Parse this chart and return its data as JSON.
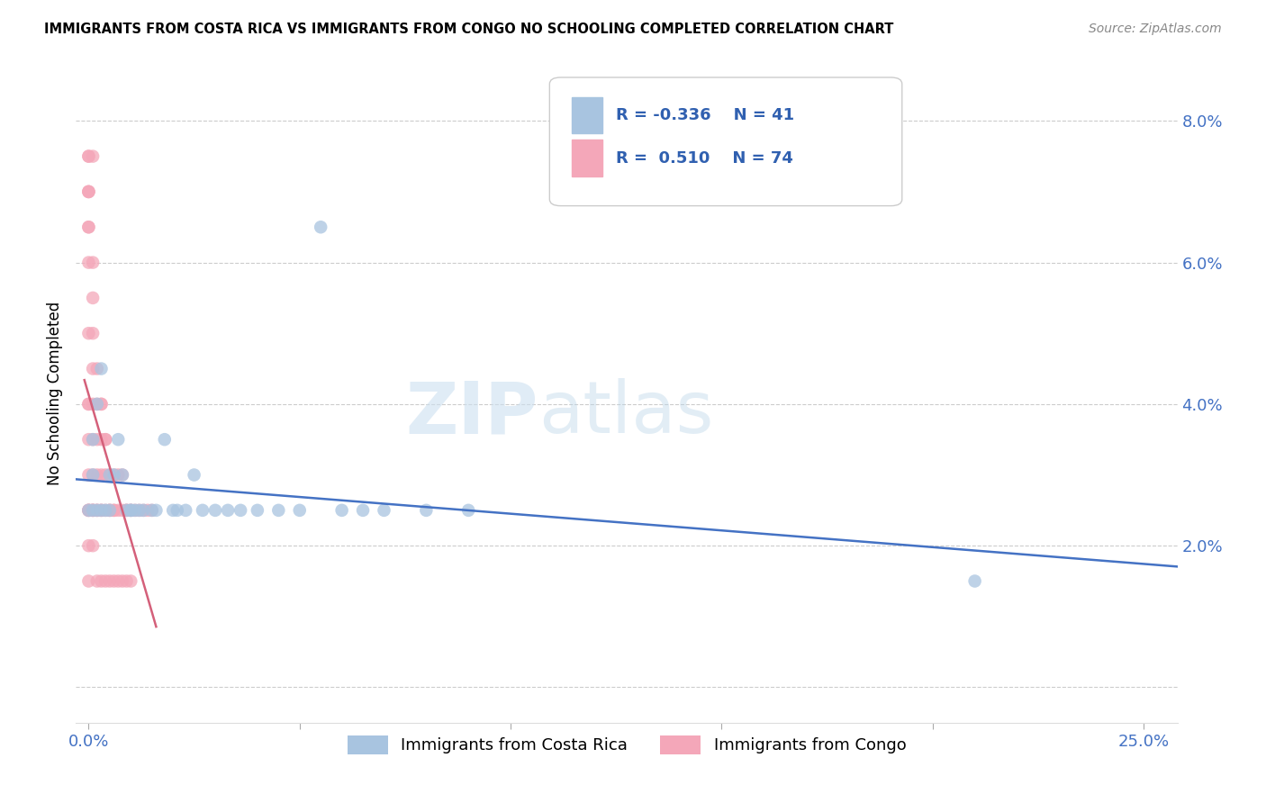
{
  "title": "IMMIGRANTS FROM COSTA RICA VS IMMIGRANTS FROM CONGO NO SCHOOLING COMPLETED CORRELATION CHART",
  "source": "Source: ZipAtlas.com",
  "ylabel": "No Schooling Completed",
  "xlim": [
    -0.003,
    0.258
  ],
  "ylim": [
    -0.005,
    0.088
  ],
  "xticks": [
    0.0,
    0.05,
    0.1,
    0.15,
    0.2,
    0.25
  ],
  "xticklabels": [
    "0.0%",
    "",
    "",
    "",
    "",
    "25.0%"
  ],
  "yticks": [
    0.0,
    0.02,
    0.04,
    0.06,
    0.08
  ],
  "yticklabels": [
    "",
    "2.0%",
    "4.0%",
    "6.0%",
    "8.0%"
  ],
  "legend_r_costa_rica": "-0.336",
  "legend_n_costa_rica": "41",
  "legend_r_congo": "0.510",
  "legend_n_congo": "74",
  "costa_rica_color": "#a8c4e0",
  "congo_color": "#f4a7b9",
  "costa_rica_line_color": "#4472c4",
  "congo_line_color": "#d4607a",
  "watermark_zip": "ZIP",
  "watermark_atlas": "atlas",
  "costa_rica_x": [
    0.001,
    0.001,
    0.001,
    0.002,
    0.002,
    0.003,
    0.003,
    0.004,
    0.005,
    0.005,
    0.006,
    0.007,
    0.008,
    0.009,
    0.01,
    0.01,
    0.011,
    0.012,
    0.013,
    0.015,
    0.016,
    0.018,
    0.02,
    0.021,
    0.023,
    0.025,
    0.027,
    0.03,
    0.033,
    0.036,
    0.04,
    0.045,
    0.05,
    0.055,
    0.06,
    0.065,
    0.07,
    0.08,
    0.09,
    0.21,
    0.0
  ],
  "costa_rica_y": [
    0.025,
    0.03,
    0.035,
    0.025,
    0.04,
    0.025,
    0.045,
    0.025,
    0.025,
    0.03,
    0.03,
    0.035,
    0.03,
    0.025,
    0.025,
    0.025,
    0.025,
    0.025,
    0.025,
    0.025,
    0.025,
    0.035,
    0.025,
    0.025,
    0.025,
    0.03,
    0.025,
    0.025,
    0.025,
    0.025,
    0.025,
    0.025,
    0.025,
    0.065,
    0.025,
    0.025,
    0.025,
    0.025,
    0.025,
    0.015,
    0.025
  ],
  "congo_x": [
    0.0,
    0.0,
    0.0,
    0.0,
    0.0,
    0.0,
    0.0,
    0.0,
    0.0,
    0.0,
    0.001,
    0.001,
    0.001,
    0.001,
    0.001,
    0.001,
    0.001,
    0.001,
    0.002,
    0.002,
    0.002,
    0.002,
    0.002,
    0.003,
    0.003,
    0.003,
    0.003,
    0.003,
    0.004,
    0.004,
    0.004,
    0.005,
    0.005,
    0.005,
    0.006,
    0.006,
    0.006,
    0.007,
    0.007,
    0.008,
    0.008,
    0.009,
    0.009,
    0.01,
    0.01,
    0.011,
    0.012,
    0.013,
    0.014,
    0.015,
    0.0,
    0.0,
    0.0,
    0.001,
    0.001,
    0.002,
    0.003,
    0.004,
    0.0,
    0.0,
    0.001,
    0.0,
    0.0,
    0.0,
    0.001,
    0.002,
    0.003,
    0.004,
    0.005,
    0.006,
    0.007,
    0.008,
    0.009,
    0.01
  ],
  "congo_y": [
    0.025,
    0.025,
    0.03,
    0.035,
    0.04,
    0.04,
    0.05,
    0.06,
    0.065,
    0.07,
    0.025,
    0.025,
    0.025,
    0.03,
    0.035,
    0.04,
    0.045,
    0.05,
    0.025,
    0.025,
    0.03,
    0.035,
    0.04,
    0.025,
    0.025,
    0.03,
    0.035,
    0.04,
    0.025,
    0.03,
    0.035,
    0.025,
    0.025,
    0.03,
    0.025,
    0.025,
    0.03,
    0.025,
    0.03,
    0.025,
    0.03,
    0.025,
    0.025,
    0.025,
    0.025,
    0.025,
    0.025,
    0.025,
    0.025,
    0.025,
    0.075,
    0.075,
    0.07,
    0.055,
    0.06,
    0.045,
    0.04,
    0.035,
    0.065,
    0.07,
    0.075,
    0.015,
    0.02,
    0.025,
    0.02,
    0.015,
    0.015,
    0.015,
    0.015,
    0.015,
    0.015,
    0.015,
    0.015,
    0.015
  ]
}
